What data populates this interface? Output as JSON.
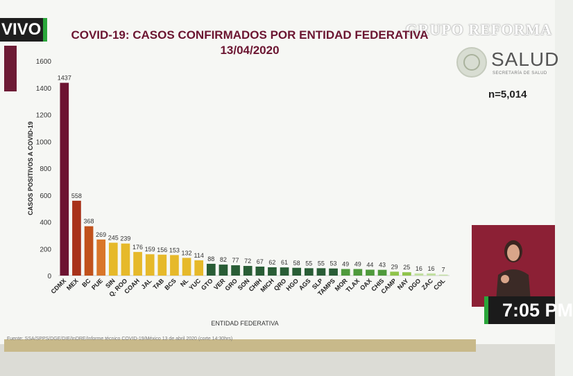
{
  "broadcast": {
    "live_label": "VIVO",
    "watermark": "GRUPO REFORMA",
    "time": "7:05 PM"
  },
  "header": {
    "title_line1": "COVID-19: CASOS CONFIRMADOS POR ENTIDAD FEDERATIVA",
    "title_line2": "13/04/2020"
  },
  "branding": {
    "salud": "SALUD",
    "salud_sub": "SECRETARÍA DE SALUD",
    "n_total": "n=5,014"
  },
  "source_note": "Fuente: SSA/SPPS/DGE/DIE/InDRE/Informe técnico COVID-19/México 13 de abril 2020 (corte 14:30hrs)",
  "colors": {
    "cdmx": "#6d1331",
    "mex": "#a8321a",
    "bc": "#c1521c",
    "pue": "#d9762a",
    "yellow": "#e6b92a",
    "darkgreen": "#295d36",
    "green": "#4f9a3c",
    "lightgreen": "#8fc34a",
    "palegreen": "#c1dfa0"
  },
  "chart_data": {
    "type": "bar",
    "title": "COVID-19: CASOS CONFIRMADOS POR ENTIDAD FEDERATIVA",
    "subtitle": "13/04/2020",
    "xlabel": "ENTIDAD FEDERATIVA",
    "ylabel": "CASOS POSITIVOS A COVID-19",
    "ylim": [
      0,
      1600
    ],
    "yticks": [
      0,
      200,
      400,
      600,
      800,
      1000,
      1200,
      1400,
      1600
    ],
    "grid": false,
    "categories": [
      "CDMX",
      "MEX",
      "BC",
      "PUE",
      "SIN",
      "Q. ROO",
      "COAH",
      "JAL",
      "TAB",
      "BCS",
      "NL",
      "YUC",
      "GTO",
      "VER",
      "GRO",
      "SON",
      "CHIH",
      "MICH",
      "QRO",
      "HGO",
      "AGS",
      "SLP",
      "TAMPS",
      "MOR",
      "TLAX",
      "OAX",
      "CHIS",
      "CAMP",
      "NAY",
      "DGO",
      "ZAC",
      "COL"
    ],
    "values": [
      1437,
      558,
      368,
      269,
      245,
      239,
      176,
      159,
      156,
      153,
      132,
      114,
      88,
      82,
      77,
      72,
      67,
      62,
      61,
      58,
      55,
      55,
      53,
      49,
      49,
      44,
      43,
      29,
      25,
      16,
      16,
      7
    ],
    "bar_colors": [
      "cdmx",
      "mex",
      "bc",
      "pue",
      "yellow",
      "yellow",
      "yellow",
      "yellow",
      "yellow",
      "yellow",
      "yellow",
      "yellow",
      "darkgreen",
      "darkgreen",
      "darkgreen",
      "darkgreen",
      "darkgreen",
      "darkgreen",
      "darkgreen",
      "darkgreen",
      "darkgreen",
      "darkgreen",
      "darkgreen",
      "green",
      "green",
      "green",
      "green",
      "lightgreen",
      "lightgreen",
      "palegreen",
      "palegreen",
      "palegreen"
    ]
  }
}
